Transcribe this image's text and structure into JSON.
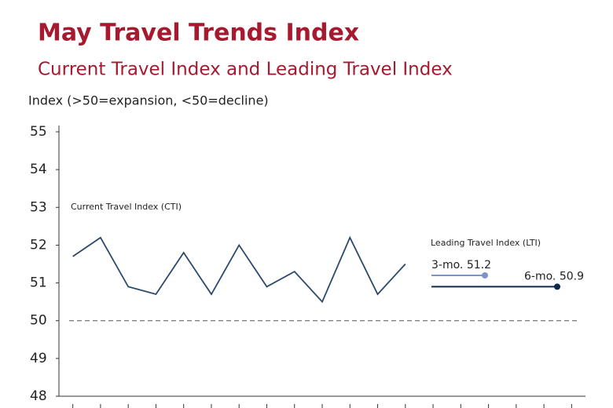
{
  "chart_data": {
    "type": "line",
    "title": "May Travel Trends Index",
    "subtitle": "Current Travel Index and Leading Travel Index",
    "y_label": "Index (>50=expansion, <50=decline)",
    "categories": [
      null,
      null,
      null,
      null,
      null,
      null,
      null,
      null,
      null,
      null,
      null,
      null,
      null,
      null,
      null,
      null,
      null,
      null,
      null
    ],
    "series": [
      {
        "name": "Current Travel Index (CTI)",
        "color": "#2b4a6b",
        "values": [
          51.7,
          52.2,
          50.9,
          50.7,
          51.8,
          50.7,
          52.0,
          50.9,
          51.3,
          50.5,
          52.2,
          50.7,
          51.5,
          null,
          null,
          null,
          null,
          null,
          null
        ]
      }
    ],
    "leading": {
      "title": "Leading Travel Index (LTI)",
      "items": [
        {
          "label": "3-mo. 51.2",
          "value": 51.2,
          "color": "#7b93c9"
        },
        {
          "label": "6-mo. 50.9",
          "value": 50.9,
          "color": "#0d2a4a"
        }
      ]
    },
    "reference_line": 50,
    "ylim": [
      48,
      55
    ],
    "yticks": [
      48,
      49,
      50,
      51,
      52,
      53,
      54,
      55
    ]
  }
}
